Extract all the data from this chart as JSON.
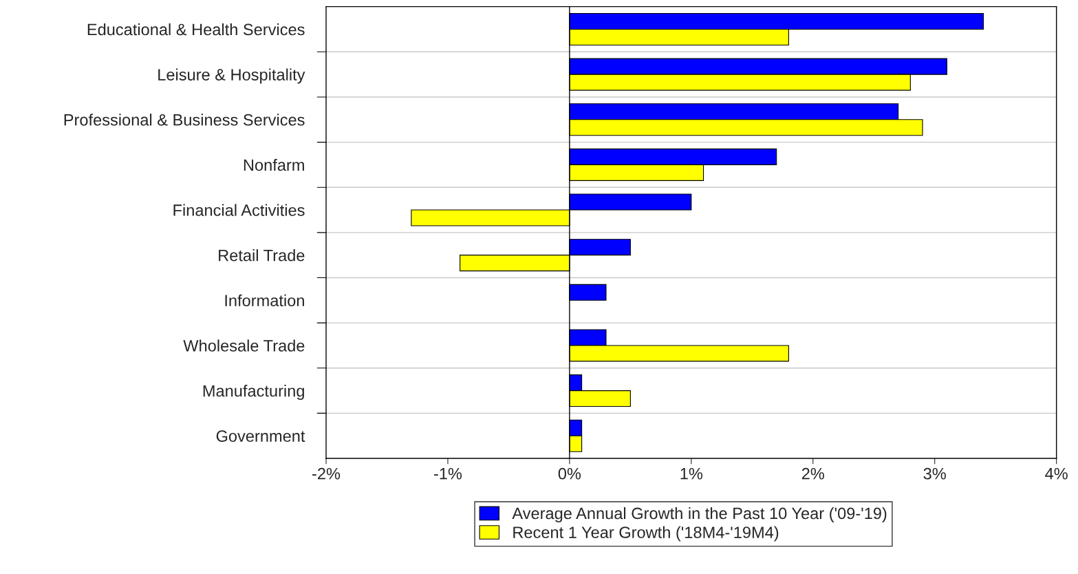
{
  "chart_data": {
    "type": "bar",
    "orientation": "horizontal",
    "categories": [
      "Educational & Health Services",
      "Leisure & Hospitality",
      "Professional & Business Services",
      "Nonfarm",
      "Financial Activities",
      "Retail Trade",
      "Information",
      "Wholesale Trade",
      "Manufacturing",
      "Government"
    ],
    "series": [
      {
        "name": "Average Annual Growth in the Past 10 Year ('09-'19)",
        "color": "#0000ff",
        "values": [
          3.4,
          3.1,
          2.7,
          1.7,
          1.0,
          0.5,
          0.3,
          0.3,
          0.1,
          0.1
        ]
      },
      {
        "name": "Recent 1 Year Growth ('18M4-'19M4)",
        "color": "#ffff00",
        "values": [
          1.8,
          2.8,
          2.9,
          1.1,
          -1.3,
          -0.9,
          null,
          1.8,
          0.5,
          0.1
        ]
      }
    ],
    "xlim": [
      -2,
      4
    ],
    "xticks": [
      {
        "value": -2,
        "label": "-2%"
      },
      {
        "value": -1,
        "label": "-1%"
      },
      {
        "value": 0,
        "label": "0%"
      },
      {
        "value": 1,
        "label": "1%"
      },
      {
        "value": 2,
        "label": "2%"
      },
      {
        "value": 3,
        "label": "3%"
      },
      {
        "value": 4,
        "label": "4%"
      }
    ],
    "ref_lines": [
      {
        "axis": "x",
        "value": 0,
        "color": "#000000"
      }
    ],
    "grid": "y",
    "legend": "bottom"
  }
}
